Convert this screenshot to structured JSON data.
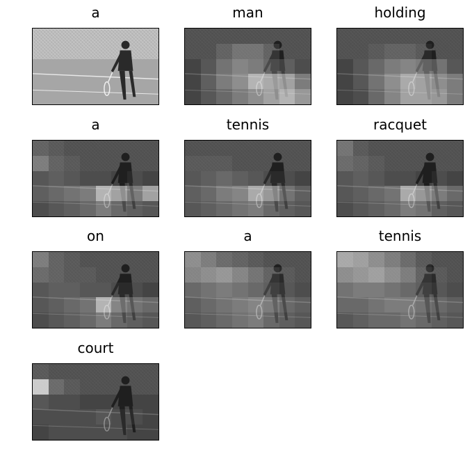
{
  "panels": [
    {
      "word": "a",
      "mask": "none"
    },
    {
      "word": "man",
      "mask": "grid",
      "cells": [
        0,
        0,
        0,
        0,
        0,
        0,
        0,
        0,
        0,
        0,
        0.1,
        0.2,
        0.2,
        0.1,
        0,
        0,
        0,
        0.1,
        0.25,
        0.35,
        0.3,
        0.2,
        0.15,
        0.05,
        0,
        0.15,
        0.3,
        0.4,
        0.6,
        0.55,
        0.5,
        0.3,
        0,
        0.1,
        0.2,
        0.3,
        0.4,
        0.5,
        0.6,
        0.45
      ]
    },
    {
      "word": "holding",
      "mask": "grid",
      "cells": [
        0,
        0,
        0,
        0,
        0,
        0,
        0,
        0,
        0,
        0,
        0.05,
        0.1,
        0.1,
        0.05,
        0,
        0,
        0,
        0.1,
        0.2,
        0.3,
        0.35,
        0.3,
        0.25,
        0.1,
        0,
        0.1,
        0.25,
        0.4,
        0.55,
        0.5,
        0.4,
        0.3,
        0,
        0.05,
        0.2,
        0.35,
        0.5,
        0.5,
        0.45,
        0.3
      ]
    },
    {
      "word": "a",
      "mask": "grid",
      "cells": [
        0.1,
        0.05,
        0,
        0,
        0,
        0,
        0,
        0,
        0.25,
        0.1,
        0.05,
        0,
        0,
        0,
        0,
        0,
        0.1,
        0.15,
        0.1,
        0.05,
        0.05,
        0,
        0.05,
        0,
        0.15,
        0.2,
        0.25,
        0.3,
        0.6,
        0.5,
        0.3,
        0.5,
        0.05,
        0.1,
        0.15,
        0.2,
        0.3,
        0.2,
        0.15,
        0.1
      ]
    },
    {
      "word": "tennis",
      "mask": "grid",
      "cells": [
        0,
        0,
        0,
        0,
        0,
        0,
        0,
        0,
        0.05,
        0.05,
        0.05,
        0,
        0,
        0,
        0,
        0,
        0.1,
        0.15,
        0.2,
        0.15,
        0.1,
        0.05,
        0.05,
        0,
        0.15,
        0.2,
        0.3,
        0.35,
        0.55,
        0.45,
        0.25,
        0.15,
        0.1,
        0.15,
        0.2,
        0.25,
        0.3,
        0.2,
        0.15,
        0.1
      ]
    },
    {
      "word": "racquet",
      "mask": "grid",
      "cells": [
        0.2,
        0.05,
        0,
        0,
        0,
        0,
        0,
        0,
        0.15,
        0.1,
        0.05,
        0,
        0,
        0,
        0,
        0,
        0.1,
        0.15,
        0.1,
        0.05,
        0.05,
        0,
        0.05,
        0,
        0.1,
        0.15,
        0.2,
        0.25,
        0.55,
        0.45,
        0.3,
        0.2,
        0.05,
        0.1,
        0.15,
        0.2,
        0.3,
        0.25,
        0.15,
        0.1
      ]
    },
    {
      "word": "on",
      "mask": "grid",
      "cells": [
        0.25,
        0.1,
        0.05,
        0,
        0,
        0,
        0,
        0,
        0.15,
        0.1,
        0.05,
        0.05,
        0,
        0,
        0,
        0,
        0.1,
        0.15,
        0.15,
        0.1,
        0.1,
        0.05,
        0.05,
        0,
        0.1,
        0.15,
        0.2,
        0.25,
        0.6,
        0.35,
        0.25,
        0.2,
        0.05,
        0.1,
        0.15,
        0.2,
        0.3,
        0.2,
        0.15,
        0.1
      ]
    },
    {
      "word": "a",
      "mask": "grid",
      "cells": [
        0.35,
        0.25,
        0.15,
        0.1,
        0.05,
        0,
        0,
        0,
        0.3,
        0.35,
        0.4,
        0.3,
        0.2,
        0.1,
        0.05,
        0,
        0.2,
        0.25,
        0.3,
        0.25,
        0.2,
        0.15,
        0.1,
        0.05,
        0.15,
        0.2,
        0.25,
        0.3,
        0.35,
        0.3,
        0.2,
        0.15,
        0.1,
        0.15,
        0.2,
        0.25,
        0.3,
        0.2,
        0.15,
        0.1
      ]
    },
    {
      "word": "tennis",
      "mask": "grid",
      "cells": [
        0.5,
        0.45,
        0.35,
        0.25,
        0.15,
        0.05,
        0,
        0,
        0.35,
        0.4,
        0.45,
        0.35,
        0.25,
        0.1,
        0.05,
        0,
        0.25,
        0.3,
        0.3,
        0.25,
        0.2,
        0.15,
        0.1,
        0.05,
        0.2,
        0.2,
        0.25,
        0.3,
        0.3,
        0.25,
        0.2,
        0.15,
        0.1,
        0.15,
        0.2,
        0.2,
        0.25,
        0.2,
        0.15,
        0.1
      ]
    },
    {
      "word": "court",
      "mask": "grid",
      "cells": [
        0.05,
        0,
        0,
        0,
        0,
        0,
        0,
        0,
        0.7,
        0.15,
        0.05,
        0,
        0,
        0,
        0,
        0,
        0.1,
        0.05,
        0.05,
        0,
        0,
        0,
        0,
        0,
        0.05,
        0.05,
        0.05,
        0.05,
        0.1,
        0.05,
        0.05,
        0,
        0,
        0.05,
        0.05,
        0.05,
        0.05,
        0.05,
        0,
        0
      ]
    }
  ]
}
